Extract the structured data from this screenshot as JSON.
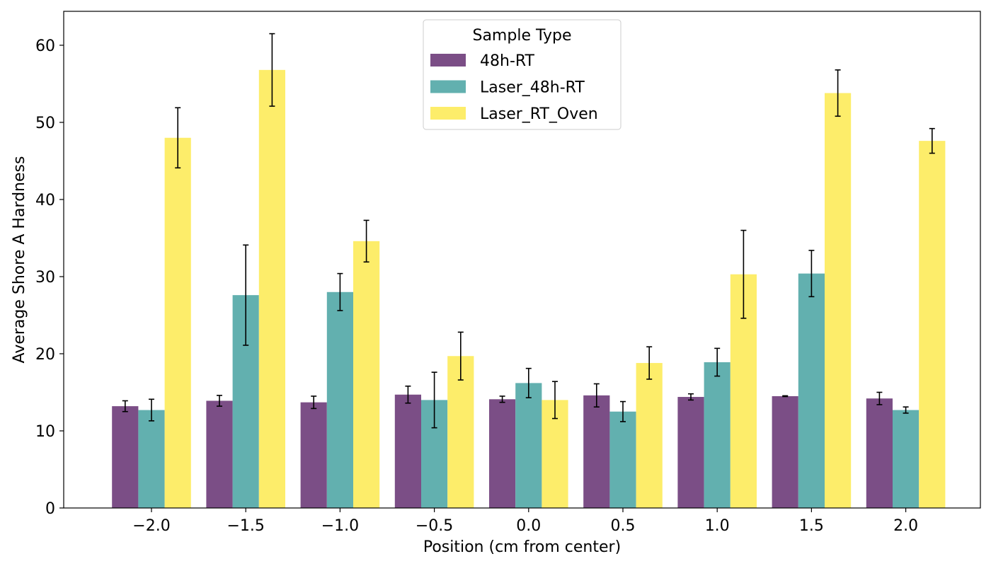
{
  "chart_data": {
    "type": "bar",
    "title": "",
    "xlabel": "Position (cm from center)",
    "ylabel": "Average Shore A Hardness",
    "categories": [
      "−2.0",
      "−1.5",
      "−1.0",
      "−0.5",
      "0.0",
      "0.5",
      "1.0",
      "1.5",
      "2.0"
    ],
    "ylim": [
      0,
      64.4
    ],
    "yticks": [
      "0",
      "10",
      "20",
      "30",
      "40",
      "50",
      "60"
    ],
    "grid": false,
    "legend": {
      "title": "Sample Type",
      "placement": "upper-center"
    },
    "series": [
      {
        "name": "48h-RT",
        "color": "#7b4e86",
        "values": [
          13.2,
          13.9,
          13.7,
          14.7,
          14.1,
          14.6,
          14.4,
          14.5,
          14.2
        ],
        "errors": [
          0.7,
          0.7,
          0.8,
          1.1,
          0.4,
          1.5,
          0.4,
          0.05,
          0.8
        ]
      },
      {
        "name": "Laser_48h-RT",
        "color": "#62b0af",
        "values": [
          12.7,
          27.6,
          28.0,
          14.0,
          16.2,
          12.5,
          18.9,
          30.4,
          12.7
        ],
        "errors": [
          1.4,
          6.5,
          2.4,
          3.6,
          1.9,
          1.3,
          1.8,
          3.0,
          0.4
        ]
      },
      {
        "name": "Laser_RT_Oven",
        "color": "#fded6a",
        "values": [
          48.0,
          56.8,
          34.6,
          19.7,
          14.0,
          18.8,
          30.3,
          53.8,
          47.6
        ],
        "errors": [
          3.9,
          4.7,
          2.7,
          3.1,
          2.4,
          2.1,
          5.7,
          3.0,
          1.6
        ]
      }
    ]
  }
}
